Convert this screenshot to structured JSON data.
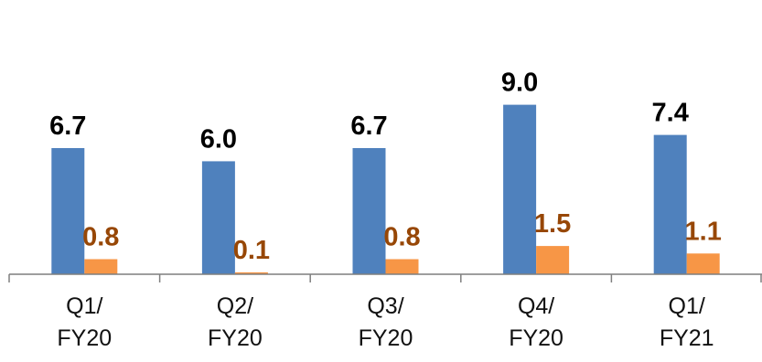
{
  "chart_data": {
    "type": "bar",
    "categories": [
      [
        "Q1/",
        "FY20"
      ],
      [
        "Q2/",
        "FY20"
      ],
      [
        "Q3/",
        "FY20"
      ],
      [
        "Q4/",
        "FY20"
      ],
      [
        "Q1/",
        "FY21"
      ]
    ],
    "series": [
      {
        "values": [
          6.7,
          6.0,
          6.7,
          9.0,
          7.4
        ],
        "value_labels": [
          "6.7",
          "6.0",
          "6.7",
          "9.0",
          "7.4"
        ],
        "color": "#4F81BD",
        "label_color": "#000000"
      },
      {
        "values": [
          0.8,
          0.1,
          0.8,
          1.5,
          1.1
        ],
        "value_labels": [
          "0.8",
          "0.1",
          "0.8",
          "1.5",
          "1.1"
        ],
        "color": "#F79646",
        "label_color": "#974706"
      }
    ],
    "title": "",
    "xlabel": "",
    "ylabel": "",
    "grid": false,
    "legend": "none",
    "axis_color": "#7F7F7F"
  }
}
